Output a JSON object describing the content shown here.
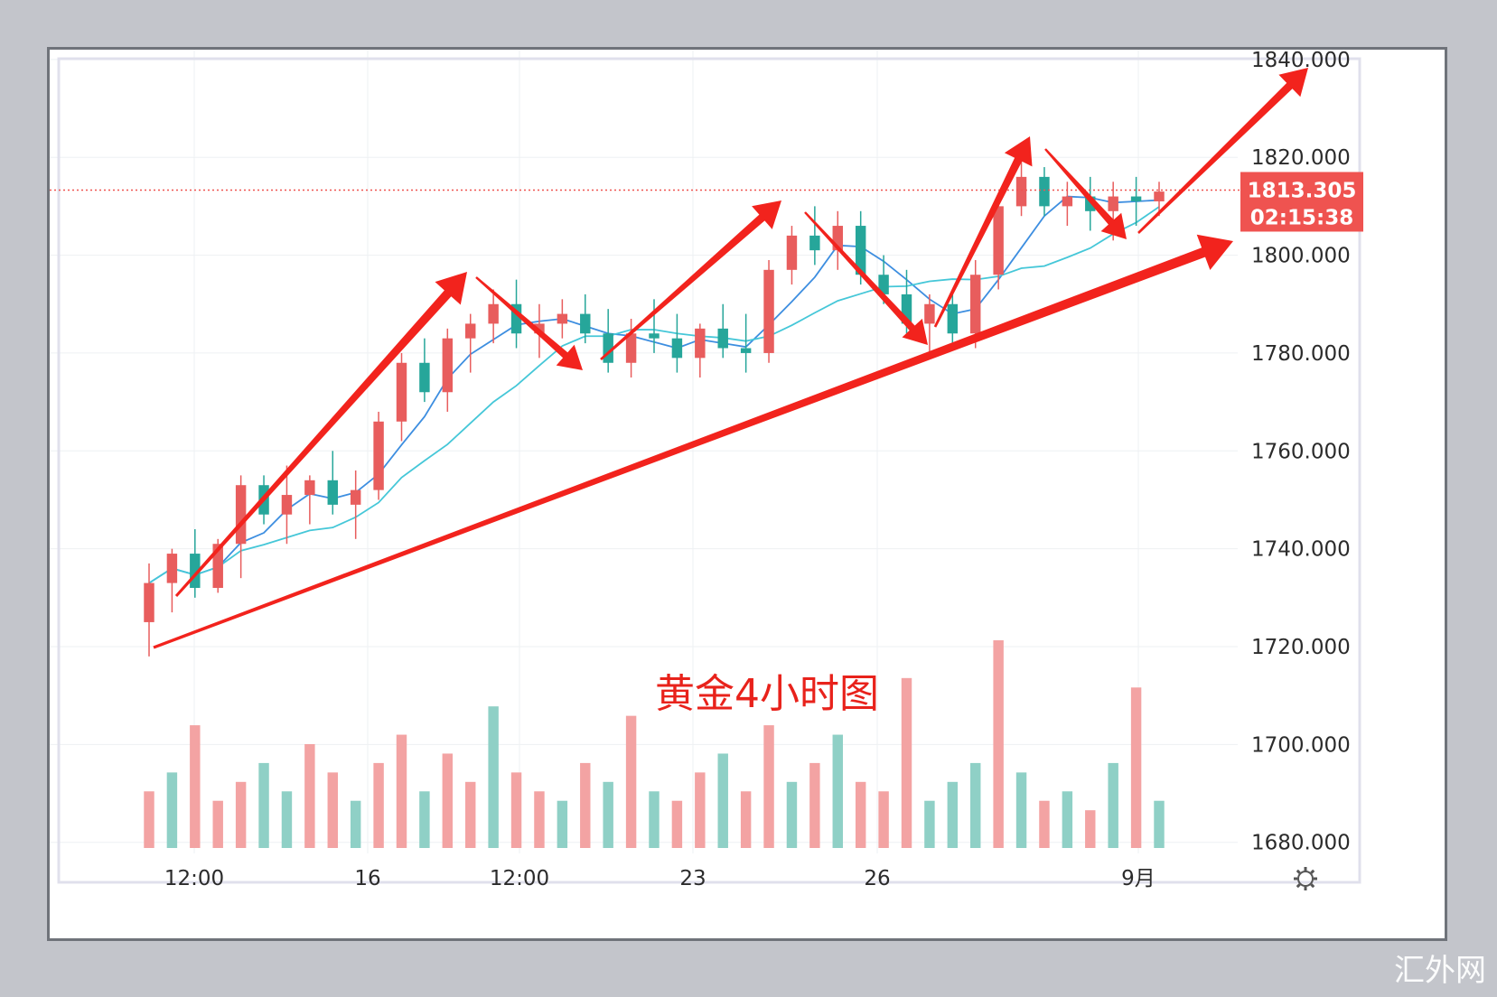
{
  "chart_data": {
    "type": "candlestick",
    "title": "",
    "annotation": "黄金4小时图",
    "current_price": "1813.305",
    "countdown": "02:15:38",
    "y_axis": {
      "range": [
        1677,
        1842
      ],
      "ticks": [
        "1840.000",
        "1820.000",
        "1800.000",
        "1780.000",
        "1760.000",
        "1740.000",
        "1720.000",
        "1700.000",
        "1680.000"
      ]
    },
    "x_axis": {
      "ticks": [
        "12:00",
        "16",
        "12:00",
        "23",
        "26",
        "9月"
      ]
    },
    "candles": [
      {
        "o": 1725,
        "h": 1737,
        "l": 1718,
        "c": 1733
      },
      {
        "o": 1733,
        "h": 1740,
        "l": 1727,
        "c": 1739
      },
      {
        "o": 1739,
        "h": 1744,
        "l": 1730,
        "c": 1732
      },
      {
        "o": 1732,
        "h": 1742,
        "l": 1731,
        "c": 1741
      },
      {
        "o": 1741,
        "h": 1755,
        "l": 1734,
        "c": 1753
      },
      {
        "o": 1753,
        "h": 1755,
        "l": 1745,
        "c": 1747
      },
      {
        "o": 1747,
        "h": 1757,
        "l": 1741,
        "c": 1751
      },
      {
        "o": 1751,
        "h": 1755,
        "l": 1745,
        "c": 1754
      },
      {
        "o": 1754,
        "h": 1760,
        "l": 1747,
        "c": 1749
      },
      {
        "o": 1749,
        "h": 1756,
        "l": 1742,
        "c": 1752
      },
      {
        "o": 1752,
        "h": 1768,
        "l": 1750,
        "c": 1766
      },
      {
        "o": 1766,
        "h": 1780,
        "l": 1762,
        "c": 1778
      },
      {
        "o": 1778,
        "h": 1783,
        "l": 1770,
        "c": 1772
      },
      {
        "o": 1772,
        "h": 1785,
        "l": 1768,
        "c": 1783
      },
      {
        "o": 1783,
        "h": 1788,
        "l": 1776,
        "c": 1786
      },
      {
        "o": 1786,
        "h": 1793,
        "l": 1782,
        "c": 1790
      },
      {
        "o": 1790,
        "h": 1795,
        "l": 1781,
        "c": 1784
      },
      {
        "o": 1784,
        "h": 1790,
        "l": 1779,
        "c": 1786
      },
      {
        "o": 1786,
        "h": 1791,
        "l": 1783,
        "c": 1788
      },
      {
        "o": 1788,
        "h": 1792,
        "l": 1782,
        "c": 1784
      },
      {
        "o": 1784,
        "h": 1789,
        "l": 1776,
        "c": 1778
      },
      {
        "o": 1778,
        "h": 1787,
        "l": 1775,
        "c": 1784
      },
      {
        "o": 1784,
        "h": 1791,
        "l": 1780,
        "c": 1783
      },
      {
        "o": 1783,
        "h": 1788,
        "l": 1776,
        "c": 1779
      },
      {
        "o": 1779,
        "h": 1786,
        "l": 1775,
        "c": 1785
      },
      {
        "o": 1785,
        "h": 1790,
        "l": 1779,
        "c": 1781
      },
      {
        "o": 1781,
        "h": 1788,
        "l": 1776,
        "c": 1780
      },
      {
        "o": 1780,
        "h": 1799,
        "l": 1778,
        "c": 1797
      },
      {
        "o": 1797,
        "h": 1806,
        "l": 1794,
        "c": 1804
      },
      {
        "o": 1804,
        "h": 1810,
        "l": 1798,
        "c": 1801
      },
      {
        "o": 1801,
        "h": 1809,
        "l": 1797,
        "c": 1806
      },
      {
        "o": 1806,
        "h": 1809,
        "l": 1794,
        "c": 1796
      },
      {
        "o": 1796,
        "h": 1800,
        "l": 1790,
        "c": 1792
      },
      {
        "o": 1792,
        "h": 1797,
        "l": 1784,
        "c": 1786
      },
      {
        "o": 1786,
        "h": 1792,
        "l": 1780,
        "c": 1790
      },
      {
        "o": 1790,
        "h": 1793,
        "l": 1782,
        "c": 1784
      },
      {
        "o": 1784,
        "h": 1799,
        "l": 1781,
        "c": 1796
      },
      {
        "o": 1796,
        "h": 1812,
        "l": 1793,
        "c": 1810
      },
      {
        "o": 1810,
        "h": 1822,
        "l": 1808,
        "c": 1816
      },
      {
        "o": 1816,
        "h": 1818,
        "l": 1808,
        "c": 1810
      },
      {
        "o": 1810,
        "h": 1815,
        "l": 1806,
        "c": 1812
      },
      {
        "o": 1812,
        "h": 1816,
        "l": 1805,
        "c": 1809
      },
      {
        "o": 1809,
        "h": 1815,
        "l": 1803,
        "c": 1812
      },
      {
        "o": 1812,
        "h": 1816,
        "l": 1806,
        "c": 1811
      },
      {
        "o": 1811,
        "h": 1815,
        "l": 1808,
        "c": 1813
      }
    ],
    "volume": [
      {
        "v": 6,
        "up": true
      },
      {
        "v": 8,
        "up": false
      },
      {
        "v": 13,
        "up": true
      },
      {
        "v": 5,
        "up": true
      },
      {
        "v": 7,
        "up": true
      },
      {
        "v": 9,
        "up": false
      },
      {
        "v": 6,
        "up": false
      },
      {
        "v": 11,
        "up": true
      },
      {
        "v": 8,
        "up": true
      },
      {
        "v": 5,
        "up": false
      },
      {
        "v": 9,
        "up": true
      },
      {
        "v": 12,
        "up": true
      },
      {
        "v": 6,
        "up": false
      },
      {
        "v": 10,
        "up": true
      },
      {
        "v": 7,
        "up": true
      },
      {
        "v": 15,
        "up": false
      },
      {
        "v": 8,
        "up": true
      },
      {
        "v": 6,
        "up": true
      },
      {
        "v": 5,
        "up": false
      },
      {
        "v": 9,
        "up": true
      },
      {
        "v": 7,
        "up": false
      },
      {
        "v": 14,
        "up": true
      },
      {
        "v": 6,
        "up": false
      },
      {
        "v": 5,
        "up": true
      },
      {
        "v": 8,
        "up": true
      },
      {
        "v": 10,
        "up": false
      },
      {
        "v": 6,
        "up": true
      },
      {
        "v": 13,
        "up": true
      },
      {
        "v": 7,
        "up": false
      },
      {
        "v": 9,
        "up": true
      },
      {
        "v": 12,
        "up": false
      },
      {
        "v": 7,
        "up": true
      },
      {
        "v": 6,
        "up": true
      },
      {
        "v": 18,
        "up": true
      },
      {
        "v": 5,
        "up": false
      },
      {
        "v": 7,
        "up": false
      },
      {
        "v": 9,
        "up": false
      },
      {
        "v": 22,
        "up": true
      },
      {
        "v": 8,
        "up": false
      },
      {
        "v": 5,
        "up": true
      },
      {
        "v": 6,
        "up": false
      },
      {
        "v": 4,
        "up": true
      },
      {
        "v": 9,
        "up": false
      },
      {
        "v": 17,
        "up": true
      },
      {
        "v": 5,
        "up": false
      }
    ],
    "colors": {
      "up": "#e85d5d",
      "down": "#26a69a",
      "vol_up": "#f3a3a3",
      "vol_down": "#8fd0c6",
      "ma_fast": "#3d8ee0",
      "ma_slow": "#45c7d8",
      "arrow": "#f2231d",
      "badge": "#ef5350",
      "price_line": "#ef5350"
    }
  }
}
